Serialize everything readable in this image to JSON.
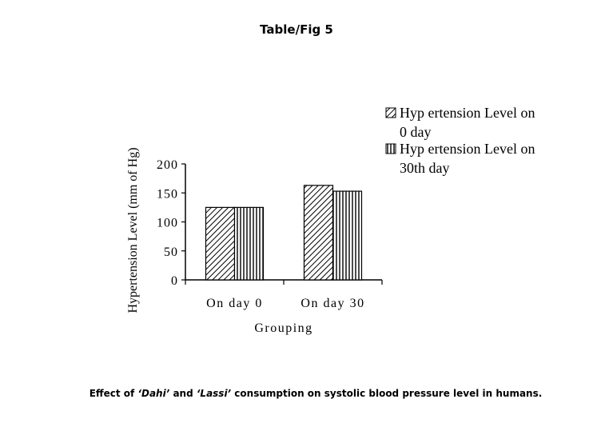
{
  "header": {
    "title": "Table/Fig 5"
  },
  "caption": {
    "prefix": "Effect of ",
    "term1": "‘Dahi’",
    "mid": " and ",
    "term2": "‘Lassi’",
    "suffix": " consumption on systolic blood pressure level in humans."
  },
  "chart_data": {
    "type": "bar",
    "title": "",
    "xlabel": "Grouping",
    "ylabel": "Hypertension Level (mm of Hg)",
    "categories": [
      "On day 0",
      "On day 30"
    ],
    "series": [
      {
        "name": "Hyp ertension Level on 0 day",
        "values": [
          125,
          163
        ],
        "pattern": "diagonal"
      },
      {
        "name": "Hyp ertension Level on 30th day",
        "values": [
          125,
          153
        ],
        "pattern": "vertical"
      }
    ],
    "ylim": [
      0,
      200
    ],
    "yticks": [
      "0",
      "50",
      "100",
      "150",
      "200"
    ],
    "legend": {
      "position": "right",
      "entries": [
        {
          "line1": "Hyp ertension Level on",
          "line2": "0 day"
        },
        {
          "line1": "Hyp ertension Level on",
          "line2": "30th day"
        }
      ]
    },
    "grid": false
  }
}
